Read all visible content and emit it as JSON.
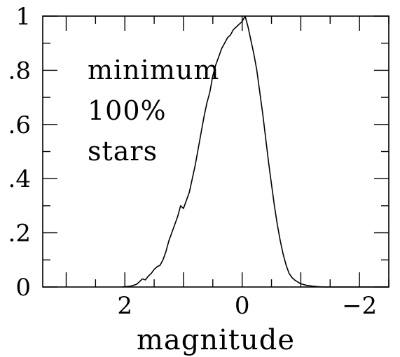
{
  "chart_data": {
    "type": "line",
    "xlabel": "magnitude",
    "ylabel": "",
    "xlim": [
      3.4,
      -2.5
    ],
    "ylim": [
      0,
      1
    ],
    "x_ticks": [
      {
        "value": 2,
        "label": "2"
      },
      {
        "value": 0,
        "label": "0"
      },
      {
        "value": -2,
        "label": "−2"
      }
    ],
    "y_ticks": [
      {
        "value": 0,
        "label": "0"
      },
      {
        "value": 0.2,
        "label": ".2"
      },
      {
        "value": 0.4,
        "label": ".4"
      },
      {
        "value": 0.6,
        "label": ".6"
      },
      {
        "value": 0.8,
        "label": ".8"
      },
      {
        "value": 1,
        "label": "1"
      }
    ],
    "x_minor_step": 0.5,
    "y_minor_step": 0.1,
    "annotation": [
      "minimum",
      "100%",
      "stars"
    ],
    "grid": false,
    "series": [
      {
        "x": [
          2.05,
          1.9,
          1.8,
          1.75,
          1.7,
          1.65,
          1.6,
          1.55,
          1.5,
          1.45,
          1.4,
          1.35,
          1.3,
          1.25,
          1.2,
          1.15,
          1.1,
          1.05,
          1.0,
          0.95,
          0.9,
          0.85,
          0.8,
          0.75,
          0.7,
          0.65,
          0.6,
          0.55,
          0.5,
          0.45,
          0.4,
          0.35,
          0.3,
          0.25,
          0.2,
          0.15,
          0.1,
          0.05,
          0.0,
          -0.05,
          -0.1,
          -0.15,
          -0.2,
          -0.25,
          -0.3,
          -0.35,
          -0.4,
          -0.45,
          -0.5,
          -0.55,
          -0.6,
          -0.65,
          -0.7,
          -0.75,
          -0.8,
          -0.85,
          -0.9,
          -1.0,
          -1.1,
          -1.2,
          -1.3,
          -1.4,
          -1.5,
          -1.6,
          -1.7,
          -1.8,
          -1.9,
          -2.0
        ],
        "y": [
          0.0,
          0.003,
          0.01,
          0.02,
          0.03,
          0.026,
          0.04,
          0.05,
          0.065,
          0.075,
          0.08,
          0.1,
          0.13,
          0.17,
          0.2,
          0.23,
          0.26,
          0.3,
          0.29,
          0.32,
          0.35,
          0.4,
          0.45,
          0.51,
          0.57,
          0.63,
          0.68,
          0.72,
          0.78,
          0.82,
          0.85,
          0.88,
          0.9,
          0.92,
          0.93,
          0.95,
          0.96,
          0.97,
          0.98,
          1.0,
          0.96,
          0.91,
          0.86,
          0.8,
          0.72,
          0.64,
          0.55,
          0.46,
          0.38,
          0.3,
          0.23,
          0.17,
          0.12,
          0.08,
          0.05,
          0.035,
          0.025,
          0.012,
          0.006,
          0.003,
          0.001,
          0.0,
          0.0,
          0.0,
          0.0,
          0.0,
          0.0,
          0.0
        ]
      }
    ]
  }
}
